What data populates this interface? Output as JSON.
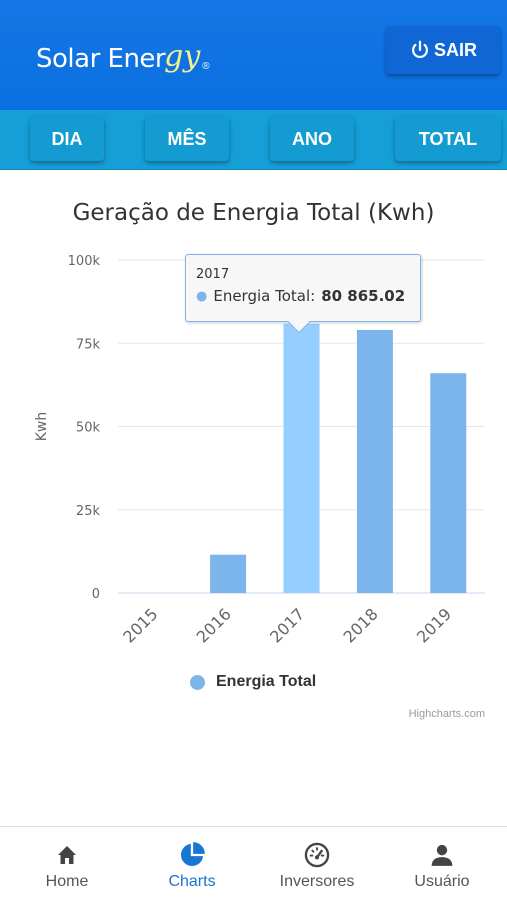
{
  "header": {
    "logo_text": "Solar Ener",
    "logo_script": "gy",
    "logo_reg": "®",
    "logout_label": "SAIR",
    "logout_icon": "power-icon"
  },
  "tabs": [
    {
      "label": "DIA"
    },
    {
      "label": "MÊS"
    },
    {
      "label": "ANO"
    },
    {
      "label": "TOTAL"
    }
  ],
  "tooltip": {
    "x": "2017",
    "series": "Energia Total:",
    "value": "80 865.02"
  },
  "credits": "Highcharts.com",
  "chart_data": {
    "type": "bar",
    "title": "Geração de Energia Total (Kwh)",
    "ylabel": "Kwh",
    "xlabel": "",
    "categories": [
      "2015",
      "2016",
      "2017",
      "2018",
      "2019"
    ],
    "series": [
      {
        "name": "Energia Total",
        "values": [
          0,
          11500,
          80865.02,
          79000,
          66000
        ],
        "color": "#7cb5ec",
        "hover_color": "#95ceff"
      }
    ],
    "ylim": [
      0,
      100000
    ],
    "yticks": [
      {
        "value": 0,
        "label": "0"
      },
      {
        "value": 25000,
        "label": "25k"
      },
      {
        "value": 50000,
        "label": "50k"
      },
      {
        "value": 75000,
        "label": "75k"
      },
      {
        "value": 100000,
        "label": "100k"
      }
    ],
    "highlighted_category": "2017",
    "grid": true,
    "legend_position": "bottom"
  },
  "bottom_nav": [
    {
      "label": "Home",
      "icon": "home-icon",
      "active": false
    },
    {
      "label": "Charts",
      "icon": "pie-chart-icon",
      "active": true
    },
    {
      "label": "Inversores",
      "icon": "speedometer-icon",
      "active": false
    },
    {
      "label": "Usuário",
      "icon": "user-icon",
      "active": false
    }
  ],
  "colors": {
    "header": "#0a6fe0",
    "tabs_bar": "#159fd6",
    "active_nav": "#1976d2",
    "bar": "#7cb5ec"
  }
}
